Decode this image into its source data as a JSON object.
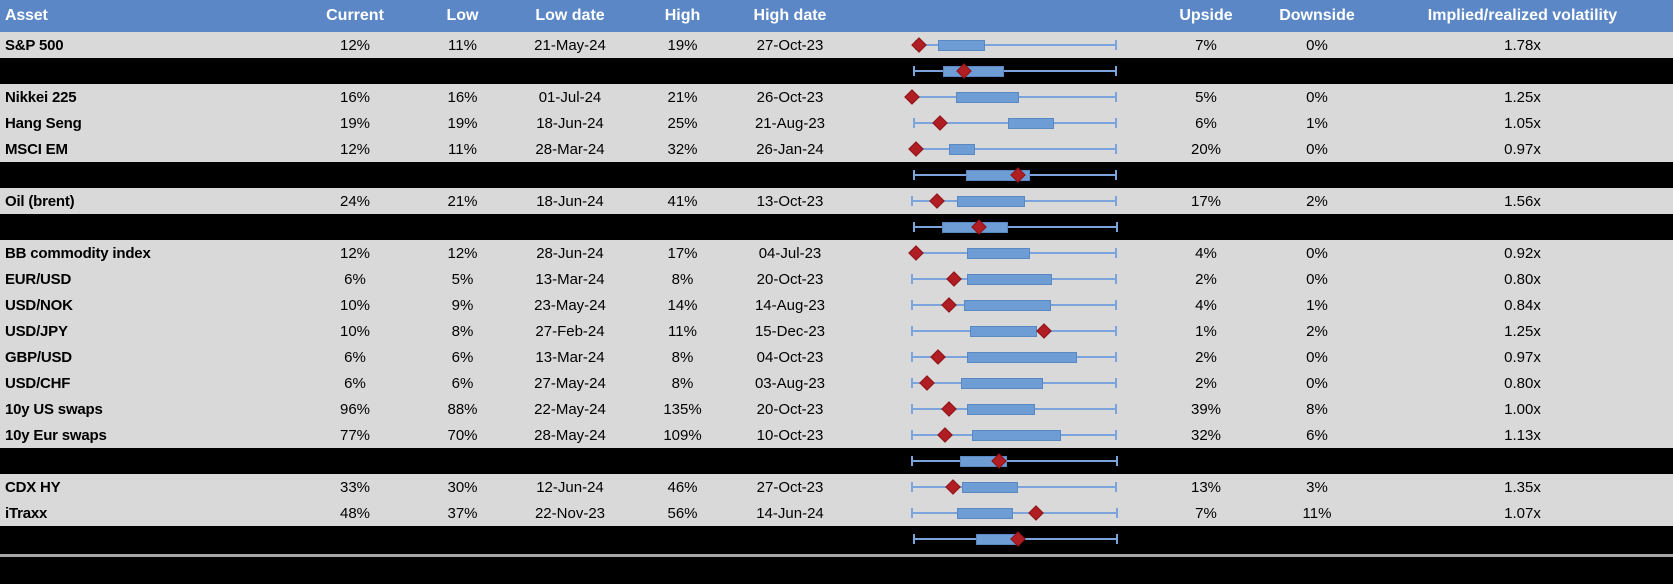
{
  "columns": {
    "asset": "Asset",
    "current": "Current",
    "low": "Low",
    "low_date": "Low date",
    "high": "High",
    "high_date": "High date",
    "chart": "",
    "upside": "Upside",
    "downside": "Downside",
    "implied": "Implied/realized volatility"
  },
  "colors": {
    "header_bg": "#5B87C6",
    "header_text": "#FFFFFF",
    "data_row_bg": "#D9D9D9",
    "separator_row_bg": "#000000",
    "box_fill": "#6E9DD6",
    "box_border": "#5A88C2",
    "whisker": "#7AA4DB",
    "marker_diamond": "#B01E23",
    "bottom_divider": "#A6A6A6"
  },
  "chart_data": {
    "type": "table",
    "notes": "Financial volatility summary table; each row embeds a horizontal box-and-whisker plot (blue whiskers with end caps, blue interquartile box) and a dark-red diamond marking the current level. Box plot values are normalized 0-100 as percent of the plot column width. Black separator rows contain aggregate box plots.",
    "columns": [
      "Asset",
      "Current",
      "Low",
      "Low date",
      "High",
      "High date",
      "Upside",
      "Downside",
      "Implied/realized volatility"
    ],
    "boxplot_scale": [
      0,
      100
    ],
    "rows": [
      {
        "kind": "data",
        "asset": "S&P 500",
        "current": "12%",
        "low": "11%",
        "low_date": "21-May-24",
        "high": "19%",
        "high_date": "27-Oct-23",
        "upside": "7%",
        "downside": "0%",
        "implied": "1.78x",
        "boxplot": {
          "lo": 2.0,
          "q1": 13.0,
          "q3": 34.8,
          "hi": 99.5,
          "marker": 3.9
        }
      },
      {
        "kind": "separator",
        "asset": "",
        "current": "",
        "low": "",
        "low_date": "",
        "high": "",
        "high_date": "",
        "upside": "",
        "downside": "",
        "implied": "",
        "boxplot": {
          "lo": 1.0,
          "q1": 15.5,
          "q3": 44.0,
          "hi": 99.5,
          "marker": 25.6
        }
      },
      {
        "kind": "data",
        "asset": "Nikkei 225",
        "current": "16%",
        "low": "16%",
        "low_date": "01-Jul-24",
        "high": "21%",
        "high_date": "26-Oct-23",
        "upside": "5%",
        "downside": "0%",
        "implied": "1.25x",
        "boxplot": {
          "lo": 0.5,
          "q1": 21.7,
          "q3": 51.2,
          "hi": 99.5,
          "marker": 0.5
        }
      },
      {
        "kind": "data",
        "asset": "Hang Seng",
        "current": "19%",
        "low": "19%",
        "low_date": "18-Jun-24",
        "high": "25%",
        "high_date": "21-Aug-23",
        "upside": "6%",
        "downside": "1%",
        "implied": "1.05x",
        "boxplot": {
          "lo": 1.0,
          "q1": 46.9,
          "q3": 68.1,
          "hi": 99.5,
          "marker": 14.0
        }
      },
      {
        "kind": "data",
        "asset": "MSCI EM",
        "current": "12%",
        "low": "11%",
        "low_date": "28-Mar-24",
        "high": "32%",
        "high_date": "26-Jan-24",
        "upside": "20%",
        "downside": "0%",
        "implied": "0.97x",
        "boxplot": {
          "lo": 2.4,
          "q1": 18.4,
          "q3": 30.0,
          "hi": 99.5,
          "marker": 2.4
        }
      },
      {
        "kind": "separator",
        "asset": "",
        "current": "",
        "low": "",
        "low_date": "",
        "high": "",
        "high_date": "",
        "upside": "",
        "downside": "",
        "implied": "",
        "boxplot": {
          "lo": 1.0,
          "q1": 26.6,
          "q3": 56.5,
          "hi": 99.5,
          "marker": 51.7
        }
      },
      {
        "kind": "data",
        "asset": "Oil (brent)",
        "current": "24%",
        "low": "21%",
        "low_date": "18-Jun-24",
        "high": "41%",
        "high_date": "13-Oct-23",
        "upside": "17%",
        "downside": "2%",
        "implied": "1.56x",
        "boxplot": {
          "lo": 0.0,
          "q1": 22.2,
          "q3": 54.1,
          "hi": 99.5,
          "marker": 12.6
        }
      },
      {
        "kind": "separator",
        "asset": "",
        "current": "",
        "low": "",
        "low_date": "",
        "high": "",
        "high_date": "",
        "upside": "",
        "downside": "",
        "implied": "",
        "boxplot": {
          "lo": 1.0,
          "q1": 15.0,
          "q3": 45.9,
          "hi": 100.0,
          "marker": 32.9
        }
      },
      {
        "kind": "data",
        "asset": "BB commodity index",
        "current": "12%",
        "low": "12%",
        "low_date": "28-Jun-24",
        "high": "17%",
        "high_date": "04-Jul-23",
        "upside": "4%",
        "downside": "0%",
        "implied": "0.92x",
        "boxplot": {
          "lo": 2.4,
          "q1": 27.1,
          "q3": 56.5,
          "hi": 99.5,
          "marker": 2.4
        }
      },
      {
        "kind": "data",
        "asset": "EUR/USD",
        "current": "6%",
        "low": "5%",
        "low_date": "13-Mar-24",
        "high": "8%",
        "high_date": "20-Oct-23",
        "upside": "2%",
        "downside": "0%",
        "implied": "0.80x",
        "boxplot": {
          "lo": 0.0,
          "q1": 27.1,
          "q3": 67.1,
          "hi": 99.5,
          "marker": 20.8
        }
      },
      {
        "kind": "data",
        "asset": "USD/NOK",
        "current": "10%",
        "low": "9%",
        "low_date": "23-May-24",
        "high": "14%",
        "high_date": "14-Aug-23",
        "upside": "4%",
        "downside": "1%",
        "implied": "0.84x",
        "boxplot": {
          "lo": 0.0,
          "q1": 25.6,
          "q3": 66.7,
          "hi": 99.5,
          "marker": 18.4
        }
      },
      {
        "kind": "data",
        "asset": "USD/JPY",
        "current": "10%",
        "low": "8%",
        "low_date": "27-Feb-24",
        "high": "11%",
        "high_date": "15-Dec-23",
        "upside": "1%",
        "downside": "2%",
        "implied": "1.25x",
        "boxplot": {
          "lo": 0.0,
          "q1": 28.5,
          "q3": 59.9,
          "hi": 99.5,
          "marker": 64.3
        }
      },
      {
        "kind": "data",
        "asset": "GBP/USD",
        "current": "6%",
        "low": "6%",
        "low_date": "13-Mar-24",
        "high": "8%",
        "high_date": "04-Oct-23",
        "upside": "2%",
        "downside": "0%",
        "implied": "0.97x",
        "boxplot": {
          "lo": 0.0,
          "q1": 27.1,
          "q3": 79.2,
          "hi": 99.5,
          "marker": 13.0
        }
      },
      {
        "kind": "data",
        "asset": "USD/CHF",
        "current": "6%",
        "low": "6%",
        "low_date": "27-May-24",
        "high": "8%",
        "high_date": "03-Aug-23",
        "upside": "2%",
        "downside": "0%",
        "implied": "0.80x",
        "boxplot": {
          "lo": 0.0,
          "q1": 24.2,
          "q3": 62.8,
          "hi": 99.5,
          "marker": 7.7
        }
      },
      {
        "kind": "data",
        "asset": "10y US swaps",
        "current": "96%",
        "low": "88%",
        "low_date": "22-May-24",
        "high": "135%",
        "high_date": "20-Oct-23",
        "upside": "39%",
        "downside": "8%",
        "implied": "1.00x",
        "boxplot": {
          "lo": 0.0,
          "q1": 27.1,
          "q3": 58.9,
          "hi": 99.5,
          "marker": 18.4
        }
      },
      {
        "kind": "data",
        "asset": "10y Eur swaps",
        "current": "77%",
        "low": "70%",
        "low_date": "28-May-24",
        "high": "109%",
        "high_date": "10-Oct-23",
        "upside": "32%",
        "downside": "6%",
        "implied": "1.13x",
        "boxplot": {
          "lo": 0.0,
          "q1": 29.5,
          "q3": 71.5,
          "hi": 99.5,
          "marker": 16.4
        }
      },
      {
        "kind": "separator",
        "asset": "",
        "current": "",
        "low": "",
        "low_date": "",
        "high": "",
        "high_date": "",
        "upside": "",
        "downside": "",
        "implied": "",
        "boxplot": {
          "lo": 0.0,
          "q1": 23.7,
          "q3": 45.4,
          "hi": 100.0,
          "marker": 42.5
        }
      },
      {
        "kind": "data",
        "asset": "CDX HY",
        "current": "33%",
        "low": "30%",
        "low_date": "12-Jun-24",
        "high": "46%",
        "high_date": "27-Oct-23",
        "upside": "13%",
        "downside": "3%",
        "implied": "1.35x",
        "boxplot": {
          "lo": 0.0,
          "q1": 24.6,
          "q3": 50.7,
          "hi": 99.5,
          "marker": 20.3
        }
      },
      {
        "kind": "data",
        "asset": "iTraxx",
        "current": "48%",
        "low": "37%",
        "low_date": "22-Nov-23",
        "high": "56%",
        "high_date": "14-Jun-24",
        "upside": "7%",
        "downside": "11%",
        "implied": "1.07x",
        "boxplot": {
          "lo": 0.0,
          "q1": 22.2,
          "q3": 48.3,
          "hi": 100.0,
          "marker": 60.4
        }
      },
      {
        "kind": "separator",
        "asset": "",
        "current": "",
        "low": "",
        "low_date": "",
        "high": "",
        "high_date": "",
        "upside": "",
        "downside": "",
        "implied": "",
        "boxplot": {
          "lo": 1.0,
          "q1": 31.4,
          "q3": 51.2,
          "hi": 100.0,
          "marker": 51.7
        }
      }
    ]
  }
}
